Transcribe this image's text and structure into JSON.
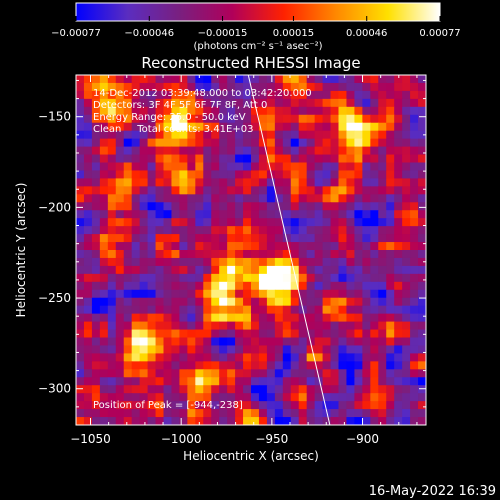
{
  "chart_data": {
    "type": "heatmap",
    "title": "Reconstructed RHESSI Image",
    "xlabel": "Heliocentric X (arcsec)",
    "ylabel": "Heliocentric Y (arcsec)",
    "xlim": [
      -1058,
      -865
    ],
    "ylim": [
      -320,
      -127
    ],
    "x_ticks": [
      -1050,
      -1000,
      -950,
      -900
    ],
    "y_ticks": [
      -300,
      -250,
      -200,
      -150
    ],
    "x_tick_labels": [
      "−1050",
      "−1000",
      "−950",
      "−900"
    ],
    "y_tick_labels": [
      "−300",
      "−250",
      "−200",
      "−150"
    ],
    "colorbar": {
      "range": [
        -0.00077,
        0.00077
      ],
      "tick_values": [
        -0.00077,
        -0.00046,
        -0.00015,
        0.00015,
        0.00046,
        0.00077
      ],
      "tick_labels": [
        "−0.00077",
        "−0.00046",
        "−0.00015",
        "0.00015",
        "0.00046",
        "0.00077"
      ],
      "unit_label": "(photons cm⁻² s⁻¹ asec⁻²)",
      "colormap": [
        "#0000ff",
        "#5b2dbf",
        "#7a1f7f",
        "#b0005a",
        "#ff2200",
        "#ff8800",
        "#ffe000",
        "#ffffff"
      ]
    },
    "annotations": [
      "14-Dec-2012 03:39:48.000 to 03:42:20.000",
      "Detectors: 3F 4F 5F 6F 7F 8F, Att 0",
      "Energy Range: 25.0 - 50.0 keV",
      "Clean     Total counts: 3.41E+03",
      "Position of Peak = [-944,-238]"
    ],
    "limb_line": {
      "x": [
        -963,
        -918
      ],
      "y": [
        -127,
        -320
      ]
    },
    "peak": {
      "x": -944,
      "y": -238
    },
    "bright_sources": [
      {
        "x": -945,
        "y": -240,
        "amp": 1.0
      },
      {
        "x": -1020,
        "y": -275,
        "amp": 0.8
      },
      {
        "x": -975,
        "y": -245,
        "amp": 0.75
      },
      {
        "x": -905,
        "y": -160,
        "amp": 0.75
      },
      {
        "x": -1000,
        "y": -175,
        "amp": 0.6
      },
      {
        "x": -1000,
        "y": -150,
        "amp": 0.6
      },
      {
        "x": -1040,
        "y": -140,
        "amp": 0.55
      },
      {
        "x": -940,
        "y": -145,
        "amp": 0.5
      },
      {
        "x": -1035,
        "y": -220,
        "amp": 0.5
      },
      {
        "x": -990,
        "y": -300,
        "amp": 0.45
      },
      {
        "x": -965,
        "y": -270,
        "amp": 0.5
      },
      {
        "x": -1045,
        "y": -300,
        "amp": 0.35
      },
      {
        "x": -875,
        "y": -200,
        "amp": 0.35
      },
      {
        "x": -1030,
        "y": -180,
        "amp": 0.4
      }
    ]
  },
  "footer": {
    "timestamp": "16-May-2022 16:39"
  }
}
